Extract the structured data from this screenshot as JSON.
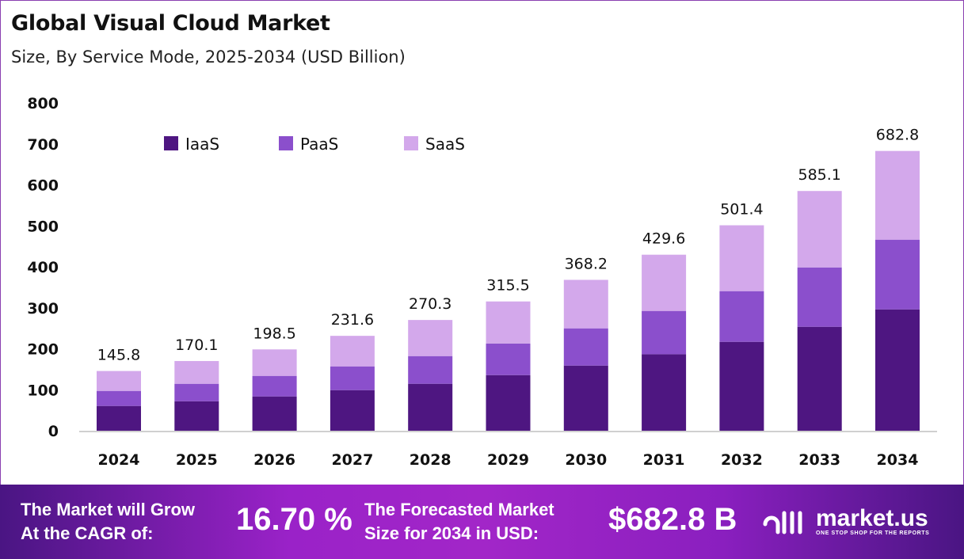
{
  "title": "Global Visual Cloud Market",
  "subtitle": "Size, By Service Mode, 2025-2034 (USD Billion)",
  "chart_data": {
    "type": "bar",
    "stacked": true,
    "categories": [
      "2024",
      "2025",
      "2026",
      "2027",
      "2028",
      "2029",
      "2030",
      "2031",
      "2032",
      "2033",
      "2034"
    ],
    "series": [
      {
        "name": "IaaS",
        "color": "#4e1681",
        "values": [
          60.5,
          72.0,
          83.7,
          99.1,
          114.6,
          135.8,
          159.0,
          186.7,
          217.0,
          253.7,
          296.2
        ]
      },
      {
        "name": "PaaS",
        "color": "#8b4fcc",
        "values": [
          36.7,
          42.6,
          50.2,
          58.0,
          67.6,
          77.2,
          90.9,
          105.7,
          123.7,
          144.9,
          170.1
        ]
      },
      {
        "name": "SaaS",
        "color": "#d3a8eb",
        "values": [
          48.6,
          55.5,
          64.6,
          74.5,
          88.1,
          102.5,
          118.3,
          137.2,
          160.7,
          186.5,
          216.5
        ]
      }
    ],
    "totals": [
      "145.8",
      "170.1",
      "198.5",
      "231.6",
      "270.3",
      "315.5",
      "368.2",
      "429.6",
      "501.4",
      "585.1",
      "682.8"
    ],
    "yticks": [
      "0",
      "100",
      "200",
      "300",
      "400",
      "500",
      "600",
      "700",
      "800"
    ],
    "ylim": [
      0,
      800
    ],
    "xlabel": "",
    "ylabel": "",
    "grid": false,
    "legend_position": "top-left"
  },
  "footer": {
    "cagr_label_1": "The Market will Grow",
    "cagr_label_2": "At the CAGR of:",
    "cagr_value": "16.70 %",
    "forecast_label_1": "The Forecasted Market",
    "forecast_label_2": "Size for 2034 in USD:",
    "forecast_value": "$682.8 B",
    "brand": "market.us",
    "tagline": "ONE STOP SHOP FOR THE REPORTS"
  }
}
